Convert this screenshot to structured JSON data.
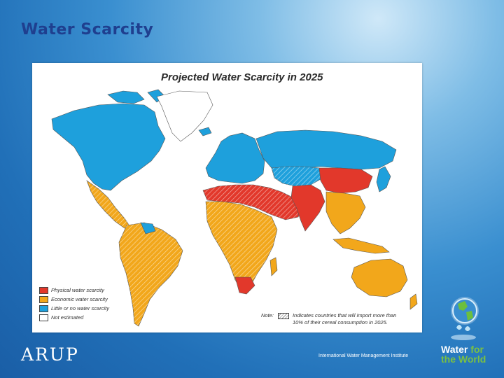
{
  "slide": {
    "title": "Water Scarcity",
    "credit": "International Water Management Institute"
  },
  "map": {
    "title": "Projected Water Scarcity in 2025",
    "legend": [
      {
        "label": "Physical water scarcity",
        "color": "#e2382b"
      },
      {
        "label": "Economic water scarcity",
        "color": "#f2a71b"
      },
      {
        "label": "Little or no water scarcity",
        "color": "#1ea0dc"
      },
      {
        "label": "Not estimated",
        "color": "#ffffff"
      }
    ],
    "note": {
      "label": "Note:",
      "text": "Indicates countries that will import more than 10% of their cereal consumption in 2025."
    }
  },
  "logos": {
    "arup": "ARUP",
    "water_for_line1": "Water",
    "water_for_line1b": "for",
    "water_for_line2": "the World"
  }
}
